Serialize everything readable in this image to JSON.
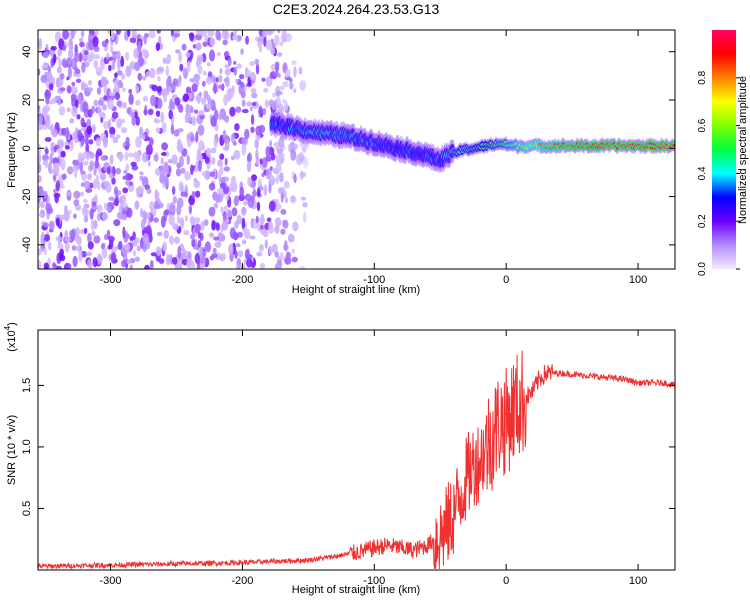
{
  "title": "C2E3.2024.264.23.53.G13",
  "chart_data": [
    {
      "type": "heatmap",
      "xlabel": "Height of straight line (km)",
      "ylabel": "Frequency (Hz)",
      "xlim": [
        -355,
        128
      ],
      "ylim": [
        -50,
        49
      ],
      "xticks": [
        -300,
        -200,
        -100,
        0,
        100
      ],
      "yticks": [
        -40,
        -20,
        0,
        20,
        40
      ],
      "colorbar": {
        "label": "Normalized spectral amplitude",
        "range": [
          0.0,
          1.0
        ],
        "ticks": [
          0.0,
          0.2,
          0.4,
          0.6,
          0.8
        ],
        "colors": [
          "#f2eaff",
          "#b48cff",
          "#6a00ff",
          "#0000ff",
          "#00ffff",
          "#00ff40",
          "#80ff00",
          "#ffff00",
          "#ff8000",
          "#ff0000",
          "#ff0060"
        ]
      },
      "noise_region": {
        "x": [
          -355,
          -150
        ],
        "freq": [
          -50,
          49
        ],
        "amplitude": [
          0.05,
          0.2
        ]
      },
      "ridge": {
        "x": [
          -178,
          -165,
          -150,
          -135,
          -120,
          -105,
          -90,
          -75,
          -60,
          -50,
          -45,
          -35,
          -25,
          -15,
          -5,
          5,
          20,
          40,
          60,
          80,
          100,
          128
        ],
        "freq": [
          10,
          9,
          7,
          6,
          5,
          3,
          1,
          -1,
          -3,
          -5,
          -3,
          -1,
          0,
          1,
          2,
          1,
          1,
          1,
          1,
          1,
          1,
          1
        ],
        "amplitude": [
          0.35,
          0.35,
          0.4,
          0.4,
          0.4,
          0.35,
          0.3,
          0.3,
          0.3,
          0.35,
          0.4,
          0.45,
          0.5,
          0.55,
          0.6,
          0.65,
          0.75,
          0.85,
          0.9,
          0.95,
          0.95,
          0.95
        ]
      }
    },
    {
      "type": "line",
      "xlabel": "Height of straight line (km)",
      "ylabel": "SNR (10 * v/v)",
      "yscale_label": "(x10",
      "yscale_exp": "4",
      "xlim": [
        -355,
        128
      ],
      "ylim": [
        0.0,
        1.95
      ],
      "xticks": [
        -300,
        -200,
        -100,
        0,
        100
      ],
      "yticks": [
        0.5,
        1.0,
        1.5
      ],
      "color": "#f03030",
      "series": [
        {
          "x": [
            -355,
            -300,
            -250,
            -200,
            -175,
            -150,
            -130,
            -110,
            -100,
            -90,
            -80,
            -70,
            -60,
            -50,
            -45,
            -40,
            -35,
            -30,
            -25,
            -20,
            -15,
            -10,
            -5,
            0,
            5,
            10,
            15,
            20,
            25,
            30,
            40,
            50,
            60,
            70,
            80,
            90,
            100,
            110,
            120,
            128
          ],
          "y": [
            0.03,
            0.04,
            0.05,
            0.06,
            0.07,
            0.08,
            0.11,
            0.15,
            0.18,
            0.2,
            0.18,
            0.16,
            0.2,
            0.28,
            0.35,
            0.45,
            0.6,
            0.75,
            0.85,
            0.9,
            1.0,
            1.1,
            1.2,
            1.2,
            1.3,
            1.35,
            1.4,
            1.45,
            1.55,
            1.6,
            1.6,
            1.59,
            1.58,
            1.57,
            1.56,
            1.55,
            1.52,
            1.52,
            1.52,
            1.5
          ]
        }
      ]
    }
  ]
}
